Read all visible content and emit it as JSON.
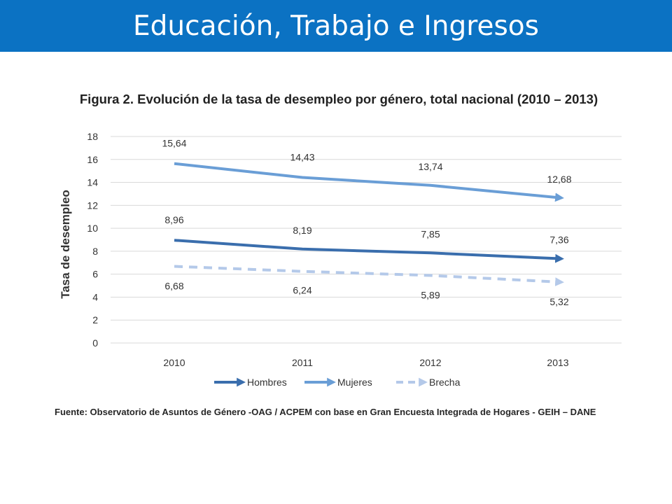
{
  "slide": {
    "title": "Educación, Trabajo e Ingresos"
  },
  "colors": {
    "header_bg": "#0b72c3",
    "hombres": "#3a6ead",
    "mujeres": "#6a9ed6",
    "brecha": "#b4c9e9",
    "grid": "#d9d9d9"
  },
  "chart_data": {
    "type": "line",
    "title": "Figura 2. Evolución de la tasa de desempleo por género, total nacional (2010 – 2013)",
    "xlabel": "",
    "ylabel": "Tasa de desempleo",
    "x": [
      "2010",
      "2011",
      "2012",
      "2013"
    ],
    "y_ticks": [
      "0",
      "2",
      "4",
      "6",
      "8",
      "10",
      "12",
      "14",
      "16",
      "18"
    ],
    "ylim": [
      0,
      18
    ],
    "grid": true,
    "legend_position": "bottom",
    "series": [
      {
        "name": "Hombres",
        "values": [
          8.96,
          8.19,
          7.85,
          7.36
        ],
        "labels": [
          "8,96",
          "8,19",
          "7,85",
          "7,36"
        ],
        "style": "solid",
        "color": "#3a6ead"
      },
      {
        "name": "Mujeres",
        "values": [
          15.64,
          14.43,
          13.74,
          12.68
        ],
        "labels": [
          "15,64",
          "14,43",
          "13,74",
          "12,68"
        ],
        "style": "solid",
        "color": "#6a9ed6"
      },
      {
        "name": "Brecha",
        "values": [
          6.68,
          6.24,
          5.89,
          5.32
        ],
        "labels": [
          "6,68",
          "6,24",
          "5,89",
          "5,32"
        ],
        "style": "dashed",
        "color": "#b4c9e9"
      }
    ],
    "source": "Fuente: Observatorio de Asuntos de Género -OAG / ACPEM con base en Gran Encuesta Integrada de Hogares - GEIH – DANE"
  }
}
